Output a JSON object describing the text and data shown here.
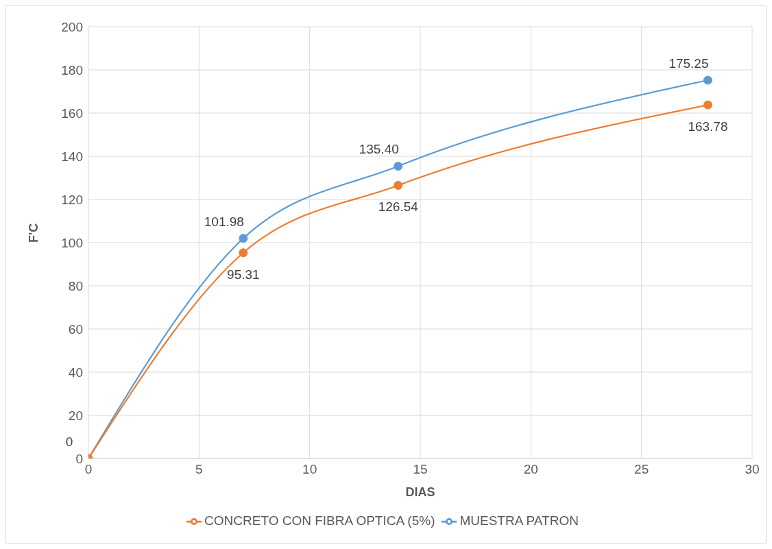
{
  "chart_data": {
    "type": "line",
    "xlabel": "DIAS",
    "ylabel": "F'C",
    "x": [
      0,
      7,
      14,
      28
    ],
    "series": [
      {
        "name": "MUESTRA PATRON",
        "color": "#5b9bd5",
        "values": [
          0,
          101.98,
          135.4,
          175.25
        ],
        "value_labels": [
          "0",
          "101.98",
          "135.40",
          "175.25"
        ]
      },
      {
        "name": "CONCRETO CON FIBRA OPTICA (5%)",
        "color": "#ed7d31",
        "values": [
          0,
          95.31,
          126.54,
          163.78
        ],
        "value_labels": [
          null,
          "95.31",
          "126.54",
          "163.78"
        ]
      }
    ],
    "xlim": [
      0,
      30
    ],
    "xticks": [
      0,
      5,
      10,
      15,
      20,
      25,
      30
    ],
    "ylim": [
      0,
      200
    ],
    "yticks": [
      0,
      20,
      40,
      60,
      80,
      100,
      120,
      140,
      160,
      180,
      200
    ],
    "grid": true,
    "legend": "bottom",
    "marker": "circle",
    "line_style": "solid"
  }
}
